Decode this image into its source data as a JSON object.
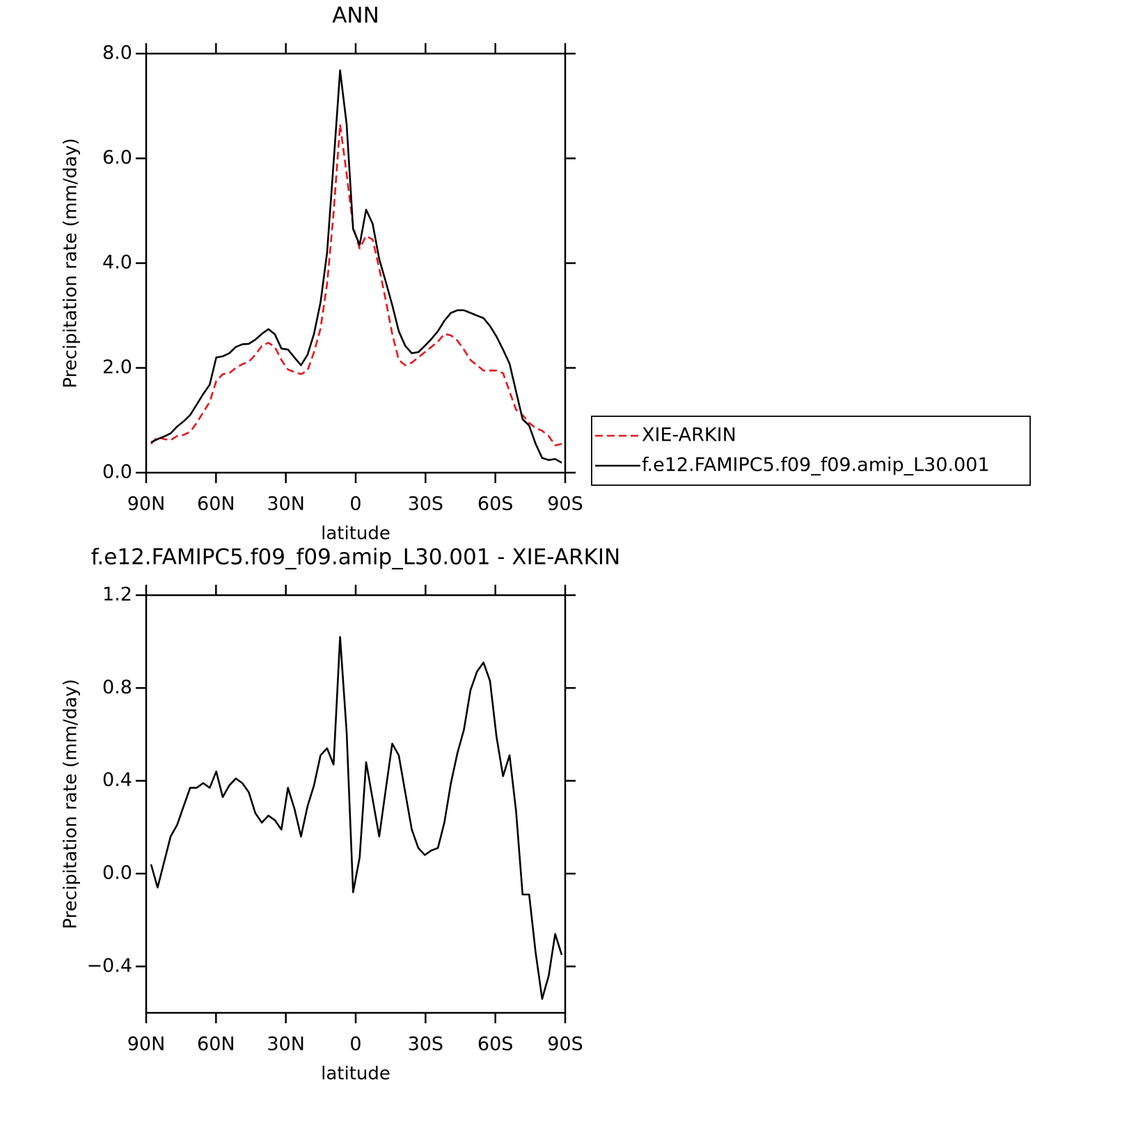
{
  "chart_data": [
    {
      "type": "line",
      "title": "ANN",
      "xlabel": "latitude",
      "ylabel": "Precipitation rate (mm/day)",
      "x": [
        87.9,
        85.1,
        82.3,
        79.5,
        76.7,
        73.9,
        71.1,
        68.3,
        65.5,
        62.7,
        59.9,
        57.1,
        54.3,
        51.5,
        48.7,
        45.9,
        43.1,
        40.3,
        37.5,
        34.7,
        31.9,
        29.1,
        26.3,
        23.5,
        20.7,
        17.9,
        15.1,
        12.3,
        9.5,
        6.7,
        3.9,
        1.1,
        -1.7,
        -4.5,
        -7.3,
        -10.1,
        -12.9,
        -15.7,
        -18.5,
        -21.3,
        -24.1,
        -26.9,
        -29.7,
        -32.5,
        -35.3,
        -38.1,
        -40.9,
        -43.7,
        -46.5,
        -49.3,
        -52.1,
        -54.9,
        -57.7,
        -60.5,
        -63.3,
        -66.1,
        -68.9,
        -71.7,
        -74.5,
        -77.3,
        -80.1,
        -82.9,
        -85.7,
        -88.5
      ],
      "series": [
        {
          "name": "XIE-ARKIN",
          "color": "#e8161b",
          "linestyle": "dashed",
          "values": [
            0.55,
            0.68,
            0.64,
            0.62,
            0.7,
            0.72,
            0.78,
            0.95,
            1.15,
            1.35,
            1.75,
            1.88,
            1.9,
            2.0,
            2.07,
            2.12,
            2.25,
            2.42,
            2.48,
            2.4,
            2.15,
            1.97,
            1.92,
            1.88,
            1.95,
            2.3,
            2.75,
            3.6,
            4.95,
            6.65,
            5.7,
            4.7,
            4.28,
            4.52,
            4.45,
            3.9,
            3.3,
            2.65,
            2.15,
            2.05,
            2.1,
            2.2,
            2.3,
            2.4,
            2.5,
            2.65,
            2.62,
            2.52,
            2.35,
            2.15,
            2.05,
            1.95,
            1.95,
            1.95,
            1.9,
            1.55,
            1.2,
            1.1,
            0.95,
            0.85,
            0.8,
            0.7,
            0.52,
            0.55
          ]
        },
        {
          "name": "f.e12.FAMIPC5.f09_f09.amip_L30.001",
          "color": "#000000",
          "linestyle": "solid",
          "values": [
            0.58,
            0.64,
            0.69,
            0.75,
            0.88,
            0.98,
            1.1,
            1.3,
            1.5,
            1.68,
            2.2,
            2.22,
            2.28,
            2.4,
            2.45,
            2.46,
            2.54,
            2.65,
            2.74,
            2.64,
            2.37,
            2.35,
            2.2,
            2.05,
            2.25,
            2.65,
            3.25,
            4.2,
            5.9,
            7.68,
            6.65,
            4.65,
            4.35,
            5.02,
            4.75,
            4.08,
            3.65,
            3.2,
            2.7,
            2.42,
            2.28,
            2.3,
            2.42,
            2.55,
            2.7,
            2.9,
            3.05,
            3.1,
            3.1,
            3.05,
            3.0,
            2.95,
            2.8,
            2.6,
            2.35,
            2.08,
            1.55,
            1.02,
            0.9,
            0.55,
            0.28,
            0.24,
            0.26,
            0.19
          ]
        }
      ],
      "xlim": [
        90,
        -90
      ],
      "xticks": [
        {
          "value": 90,
          "label": "90N"
        },
        {
          "value": 60,
          "label": "60N"
        },
        {
          "value": 30,
          "label": "30N"
        },
        0,
        {
          "value": -30,
          "label": "30S"
        },
        {
          "value": -60,
          "label": "60S"
        },
        {
          "value": -90,
          "label": "90S"
        }
      ],
      "ylim": [
        0,
        8
      ],
      "yticks": [
        {
          "value": 0,
          "label": "0.0"
        },
        {
          "value": 2,
          "label": "2.0"
        },
        {
          "value": 4,
          "label": "4.0"
        },
        {
          "value": 6,
          "label": "6.0"
        },
        {
          "value": 8,
          "label": "8.0"
        }
      ],
      "legend": "right"
    },
    {
      "type": "line",
      "title": "f.e12.FAMIPC5.f09_f09.amip_L30.001 - XIE-ARKIN",
      "xlabel": "latitude",
      "ylabel": "Precipitation rate (mm/day)",
      "x": [
        87.9,
        85.1,
        82.3,
        79.5,
        76.7,
        73.9,
        71.1,
        68.3,
        65.5,
        62.7,
        59.9,
        57.1,
        54.3,
        51.5,
        48.7,
        45.9,
        43.1,
        40.3,
        37.5,
        34.7,
        31.9,
        29.1,
        26.3,
        23.5,
        20.7,
        17.9,
        15.1,
        12.3,
        9.5,
        6.7,
        3.9,
        1.1,
        -1.7,
        -4.5,
        -7.3,
        -10.1,
        -12.9,
        -15.7,
        -18.5,
        -21.3,
        -24.1,
        -26.9,
        -29.7,
        -32.5,
        -35.3,
        -38.1,
        -40.9,
        -43.7,
        -46.5,
        -49.3,
        -52.1,
        -54.9,
        -57.7,
        -60.5,
        -63.3,
        -66.1,
        -68.9,
        -71.7,
        -74.5,
        -77.3,
        -80.1,
        -82.9,
        -85.7,
        -88.5
      ],
      "series": [
        {
          "color": "#000000",
          "linestyle": "solid",
          "values": [
            0.04,
            -0.06,
            0.05,
            0.16,
            0.21,
            0.29,
            0.37,
            0.37,
            0.39,
            0.37,
            0.44,
            0.33,
            0.38,
            0.41,
            0.39,
            0.35,
            0.26,
            0.22,
            0.25,
            0.23,
            0.19,
            0.37,
            0.28,
            0.16,
            0.29,
            0.38,
            0.51,
            0.54,
            0.47,
            1.02,
            0.61,
            -0.08,
            0.07,
            0.48,
            0.32,
            0.16,
            0.36,
            0.56,
            0.51,
            0.35,
            0.19,
            0.11,
            0.08,
            0.1,
            0.11,
            0.22,
            0.39,
            0.52,
            0.62,
            0.79,
            0.87,
            0.91,
            0.83,
            0.59,
            0.42,
            0.51,
            0.27,
            -0.09,
            -0.09,
            -0.34,
            -0.54,
            -0.44,
            -0.26,
            -0.35
          ]
        }
      ],
      "xlim": [
        90,
        -90
      ],
      "xticks": [
        {
          "value": 90,
          "label": "90N"
        },
        {
          "value": 60,
          "label": "60N"
        },
        {
          "value": 30,
          "label": "30N"
        },
        0,
        {
          "value": -30,
          "label": "30S"
        },
        {
          "value": -60,
          "label": "60S"
        },
        {
          "value": -90,
          "label": "90S"
        }
      ],
      "ylim": [
        -0.6,
        1.2
      ],
      "yticks": [
        {
          "value": -0.4,
          "label": "−0.4"
        },
        {
          "value": 0,
          "label": "0.0"
        },
        {
          "value": 0.4,
          "label": "0.4"
        },
        {
          "value": 0.8,
          "label": "0.8"
        },
        {
          "value": 1.2,
          "label": "1.2"
        }
      ]
    }
  ]
}
